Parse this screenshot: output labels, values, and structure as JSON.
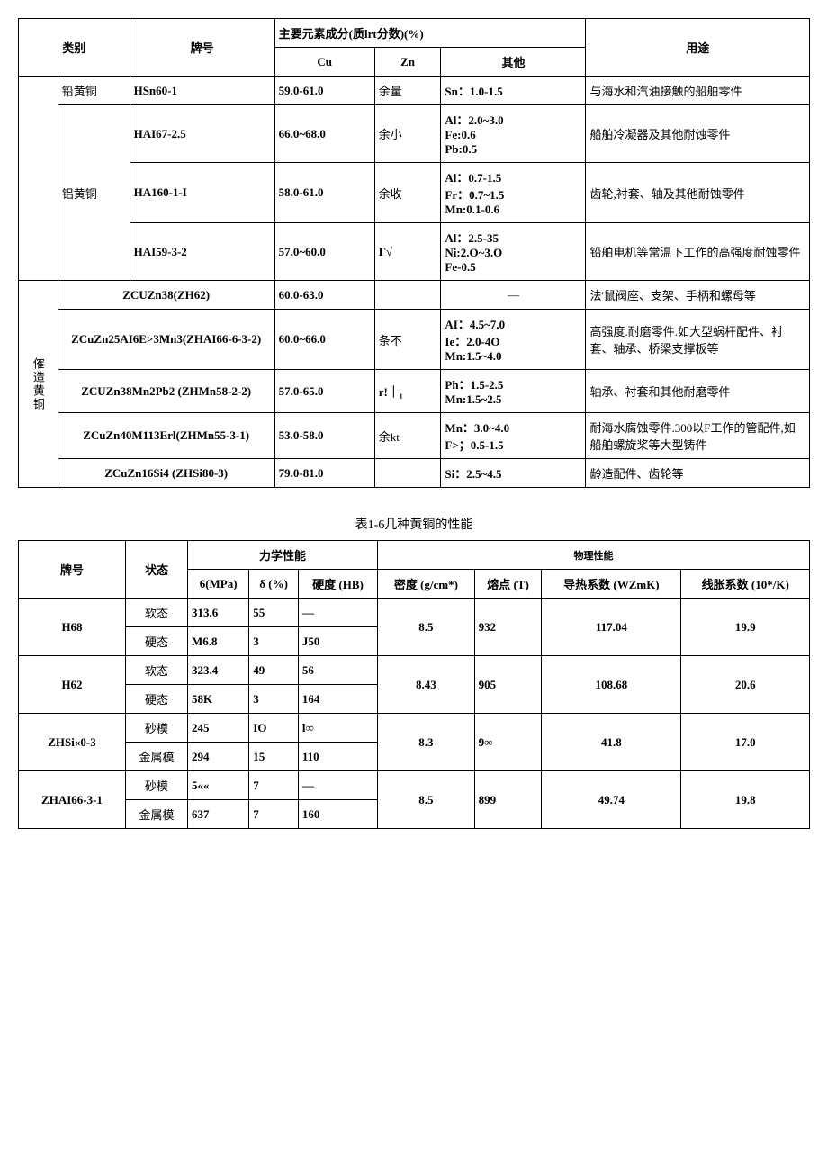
{
  "table1": {
    "header": {
      "category": "类别",
      "grade": "牌号",
      "composition": "主要元素成分(质lrt分数)(%)",
      "cu": "Cu",
      "zn": "Zn",
      "other": "其他",
      "use": "用途"
    },
    "group1": {
      "cat_sub1": "铅黄铜",
      "cat_sub2": "铝黄铜",
      "rows": [
        {
          "grade": "HSn60-1",
          "cu": "59.0-61.0",
          "zn": "余量",
          "other": "Sn：1.0-1.5",
          "use": "与海水和汽油接触的船舶零件"
        },
        {
          "grade": "HAI67-2.5",
          "cu": "66.0~68.0",
          "zn": "余小",
          "other": "Al：2.0~3.0\nFe:0.6\nPb:0.5",
          "use": "船舶冷凝器及其他耐蚀零件"
        },
        {
          "grade": "HA160-1-I",
          "cu": "58.0-61.0",
          "zn": "余收",
          "other": "Al：0.7-1.5\nFr：0.7~1.5\nMn:0.1-0.6",
          "use": "齿轮,衬套、轴及其他耐蚀零件"
        },
        {
          "grade": "HAI59-3-2",
          "cu": "57.0~60.0",
          "zn": "Γ√",
          "other": "Al：2.5-35\nNi:2.O~3.O\nFe-0.5",
          "use": "铅舶电机等常温下工作的高强度耐蚀零件"
        }
      ]
    },
    "group2": {
      "cat": "傕造黄铜",
      "rows": [
        {
          "grade": "ZCUZn38(ZH62)",
          "cu": "60.0-63.0",
          "zn": "",
          "other": "—",
          "use": "法'鼠阀座、支架、手柄和螺母等"
        },
        {
          "grade": "ZCuZn25AI6E>3Mn3(ZHAI66-6-3-2)",
          "cu": "60.0~66.0",
          "zn": "条不",
          "other": "AI：4.5~7.0\nIe：2.0-4O\nMn:1.5~4.0",
          "use": "高强度.耐磨零件.如大型蜗杆配件、衬套、轴承、桥梁支撑板等"
        },
        {
          "grade": "ZCUZn38Mn2Pb2 (ZHMn58-2-2)",
          "cu": "57.0-65.0",
          "zn": "r!｜₁",
          "other": "Ph：1.5-2.5\nMn:1.5~2.5",
          "use": "轴承、衬套和其他耐磨零件"
        },
        {
          "grade": "ZCuZn40M113Erl(ZHMn55-3-1)",
          "cu": "53.0-58.0",
          "zn": "余kt",
          "other": "Mn：3.0~4.0\nF>；0.5-1.5",
          "use": "耐海水腐蚀零件.300以F工作的管配件,如船舶螺旋桨等大型铸件"
        },
        {
          "grade": "ZCuZn16Si4 (ZHSi80-3)",
          "cu": "79.0-81.0",
          "zn": "",
          "other": "Si：2.5~4.5",
          "use": "龄造配件、齿轮等"
        }
      ]
    }
  },
  "table2": {
    "caption": "表1-6几种黄铜的性能",
    "header": {
      "grade": "牌号",
      "state": "状态",
      "mech": "力学性能",
      "phys": "物理性能",
      "sigma": "6(MPa)",
      "delta": "δ (%)",
      "hardness": "硬度 (HB)",
      "density": "密度 (g/cm*)",
      "melting": "熔点 (T)",
      "thermal": "导热系数 (WZmK)",
      "expansion": "线胀系数 (10*/K)"
    },
    "rows": [
      {
        "grade": "H68",
        "states": [
          {
            "state": "软态",
            "sigma": "313.6",
            "delta": "55",
            "hb": "—"
          },
          {
            "state": "硬态",
            "sigma": "M6.8",
            "delta": "3",
            "hb": "J50"
          }
        ],
        "density": "8.5",
        "melting": "932",
        "thermal": "117.04",
        "expansion": "19.9"
      },
      {
        "grade": "H62",
        "states": [
          {
            "state": "软态",
            "sigma": "323.4",
            "delta": "49",
            "hb": "56"
          },
          {
            "state": "硬态",
            "sigma": "58K",
            "delta": "3",
            "hb": "164"
          }
        ],
        "density": "8.43",
        "melting": "905",
        "thermal": "108.68",
        "expansion": "20.6"
      },
      {
        "grade": "ZHSi«0-3",
        "states": [
          {
            "state": "砂模",
            "sigma": "245",
            "delta": "IO",
            "hb": "l∞"
          },
          {
            "state": "金属模",
            "sigma": "294",
            "delta": "15",
            "hb": "110"
          }
        ],
        "density": "8.3",
        "melting": "9∞",
        "thermal": "41.8",
        "expansion": "17.0"
      },
      {
        "grade": "ZHAI66-3-1",
        "states": [
          {
            "state": "砂模",
            "sigma": "5««",
            "delta": "7",
            "hb": "—"
          },
          {
            "state": "金属模",
            "sigma": "637",
            "delta": "7",
            "hb": "160"
          }
        ],
        "density": "8.5",
        "melting": "899",
        "thermal": "49.74",
        "expansion": "19.8"
      }
    ]
  }
}
